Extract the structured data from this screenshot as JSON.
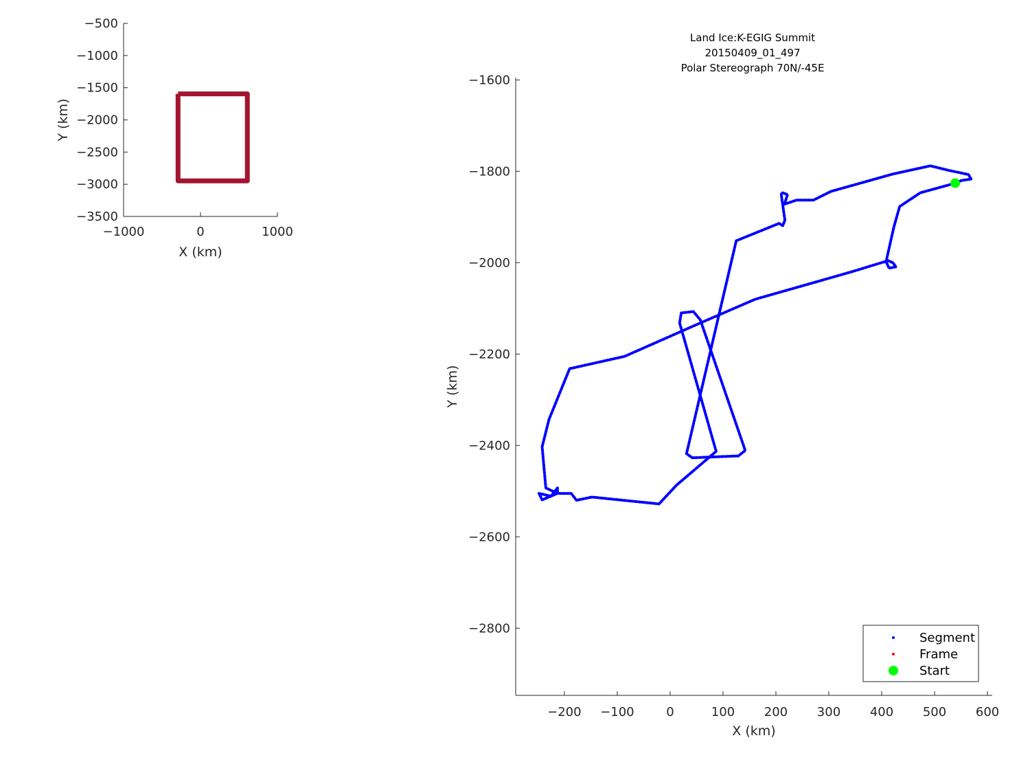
{
  "chart_data": [
    {
      "type": "line",
      "xlabel": "X (km)",
      "ylabel": "Y (km)",
      "xlim": [
        -1000,
        1000
      ],
      "ylim": [
        -3500,
        -500
      ],
      "xticks": [
        -1000,
        0,
        1000
      ],
      "yticks": [
        -500,
        -1000,
        -1500,
        -2000,
        -2500,
        -3000,
        -3500
      ],
      "grid": false,
      "series": [
        {
          "color": "#A2142F",
          "x": [
            -292,
            609,
            609,
            -292,
            -292
          ],
          "y": [
            -1595,
            -1595,
            -2947,
            -2947,
            -1595
          ]
        }
      ]
    },
    {
      "type": "scatter",
      "title": [
        "Land Ice:K-EGIG Summit",
        "20150409_01_497",
        "Polar Stereograph 70N/-45E"
      ],
      "xlabel": "X (km)",
      "ylabel": "Y (km)",
      "xlim": [
        -292,
        609
      ],
      "ylim": [
        -2947,
        -1595
      ],
      "xticks": [
        -200,
        -100,
        0,
        100,
        200,
        300,
        400,
        500,
        600
      ],
      "yticks": [
        -1600,
        -1800,
        -2000,
        -2200,
        -2400,
        -2600,
        -2800
      ],
      "grid": false,
      "legend_position": "bottom-right",
      "legend": [
        {
          "name": "Segment",
          "color": "#0000FF",
          "marker": "dot"
        },
        {
          "name": "Frame",
          "color": "#FF0000",
          "marker": "dot"
        },
        {
          "name": "Start",
          "color": "#00FF00",
          "marker": "star"
        }
      ],
      "series": [
        {
          "name": "Segment",
          "color": "#0000FF",
          "x": [
            539,
            473,
            434,
            423,
            409,
            421,
            427,
            414,
            408,
            343,
            161,
            57,
            -86,
            -190,
            -229,
            -242,
            -235,
            -213,
            -213,
            -225,
            -248,
            -242,
            -213,
            -187,
            -177,
            -148,
            -21,
            12,
            87,
            18,
            21,
            44,
            57,
            142,
            129,
            42,
            31,
            125,
            206,
            213,
            217,
            210,
            213,
            222,
            216,
            239,
            271,
            304,
            421,
            492,
            527,
            564,
            569,
            551,
            539
          ],
          "y": [
            -1826,
            -1847,
            -1877,
            -1922,
            -1994,
            -2000,
            -2009,
            -2012,
            -1997,
            -2020,
            -2080,
            -2132,
            -2205,
            -2232,
            -2343,
            -2403,
            -2493,
            -2505,
            -2493,
            -2511,
            -2505,
            -2519,
            -2505,
            -2505,
            -2520,
            -2513,
            -2528,
            -2487,
            -2413,
            -2132,
            -2110,
            -2107,
            -2125,
            -2411,
            -2423,
            -2427,
            -2418,
            -1952,
            -1914,
            -1919,
            -1907,
            -1850,
            -1847,
            -1851,
            -1872,
            -1863,
            -1863,
            -1844,
            -1806,
            -1788,
            -1798,
            -1807,
            -1817,
            -1820,
            -1826
          ]
        },
        {
          "name": "Start",
          "color": "#00FF00",
          "x": [
            539
          ],
          "y": [
            -1826
          ]
        }
      ]
    }
  ]
}
